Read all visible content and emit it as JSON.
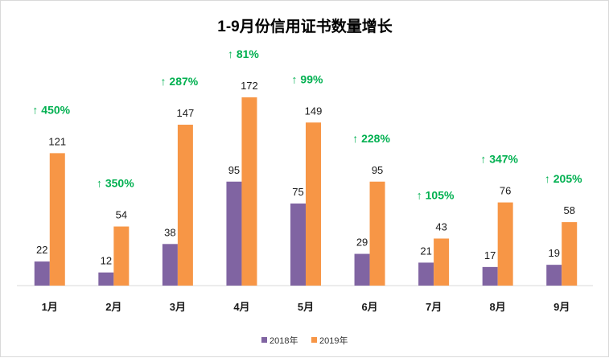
{
  "chart_data": {
    "type": "bar",
    "title": "1-9月份信用证书数量增长",
    "categories": [
      "1月",
      "2月",
      "3月",
      "4月",
      "5月",
      "6月",
      "7月",
      "8月",
      "9月"
    ],
    "series": [
      {
        "name": "2018年",
        "values": [
          22,
          12,
          38,
          95,
          75,
          29,
          21,
          17,
          19
        ]
      },
      {
        "name": "2019年",
        "values": [
          121,
          54,
          147,
          172,
          149,
          95,
          43,
          76,
          58
        ]
      }
    ],
    "growth_labels": [
      "↑ 450%",
      "↑ 350%",
      "↑ 287%",
      "↑ 81%",
      "↑ 99%",
      "↑ 228%",
      "↑ 105%",
      "↑ 347%",
      "↑ 205%"
    ],
    "ylim": [
      0,
      172
    ],
    "grid": false,
    "legend_position": "bottom",
    "colors": {
      "2018年": "#8064a2",
      "2019年": "#f79646",
      "growth": "#00b050",
      "baseline": "#d9d9d9"
    }
  }
}
